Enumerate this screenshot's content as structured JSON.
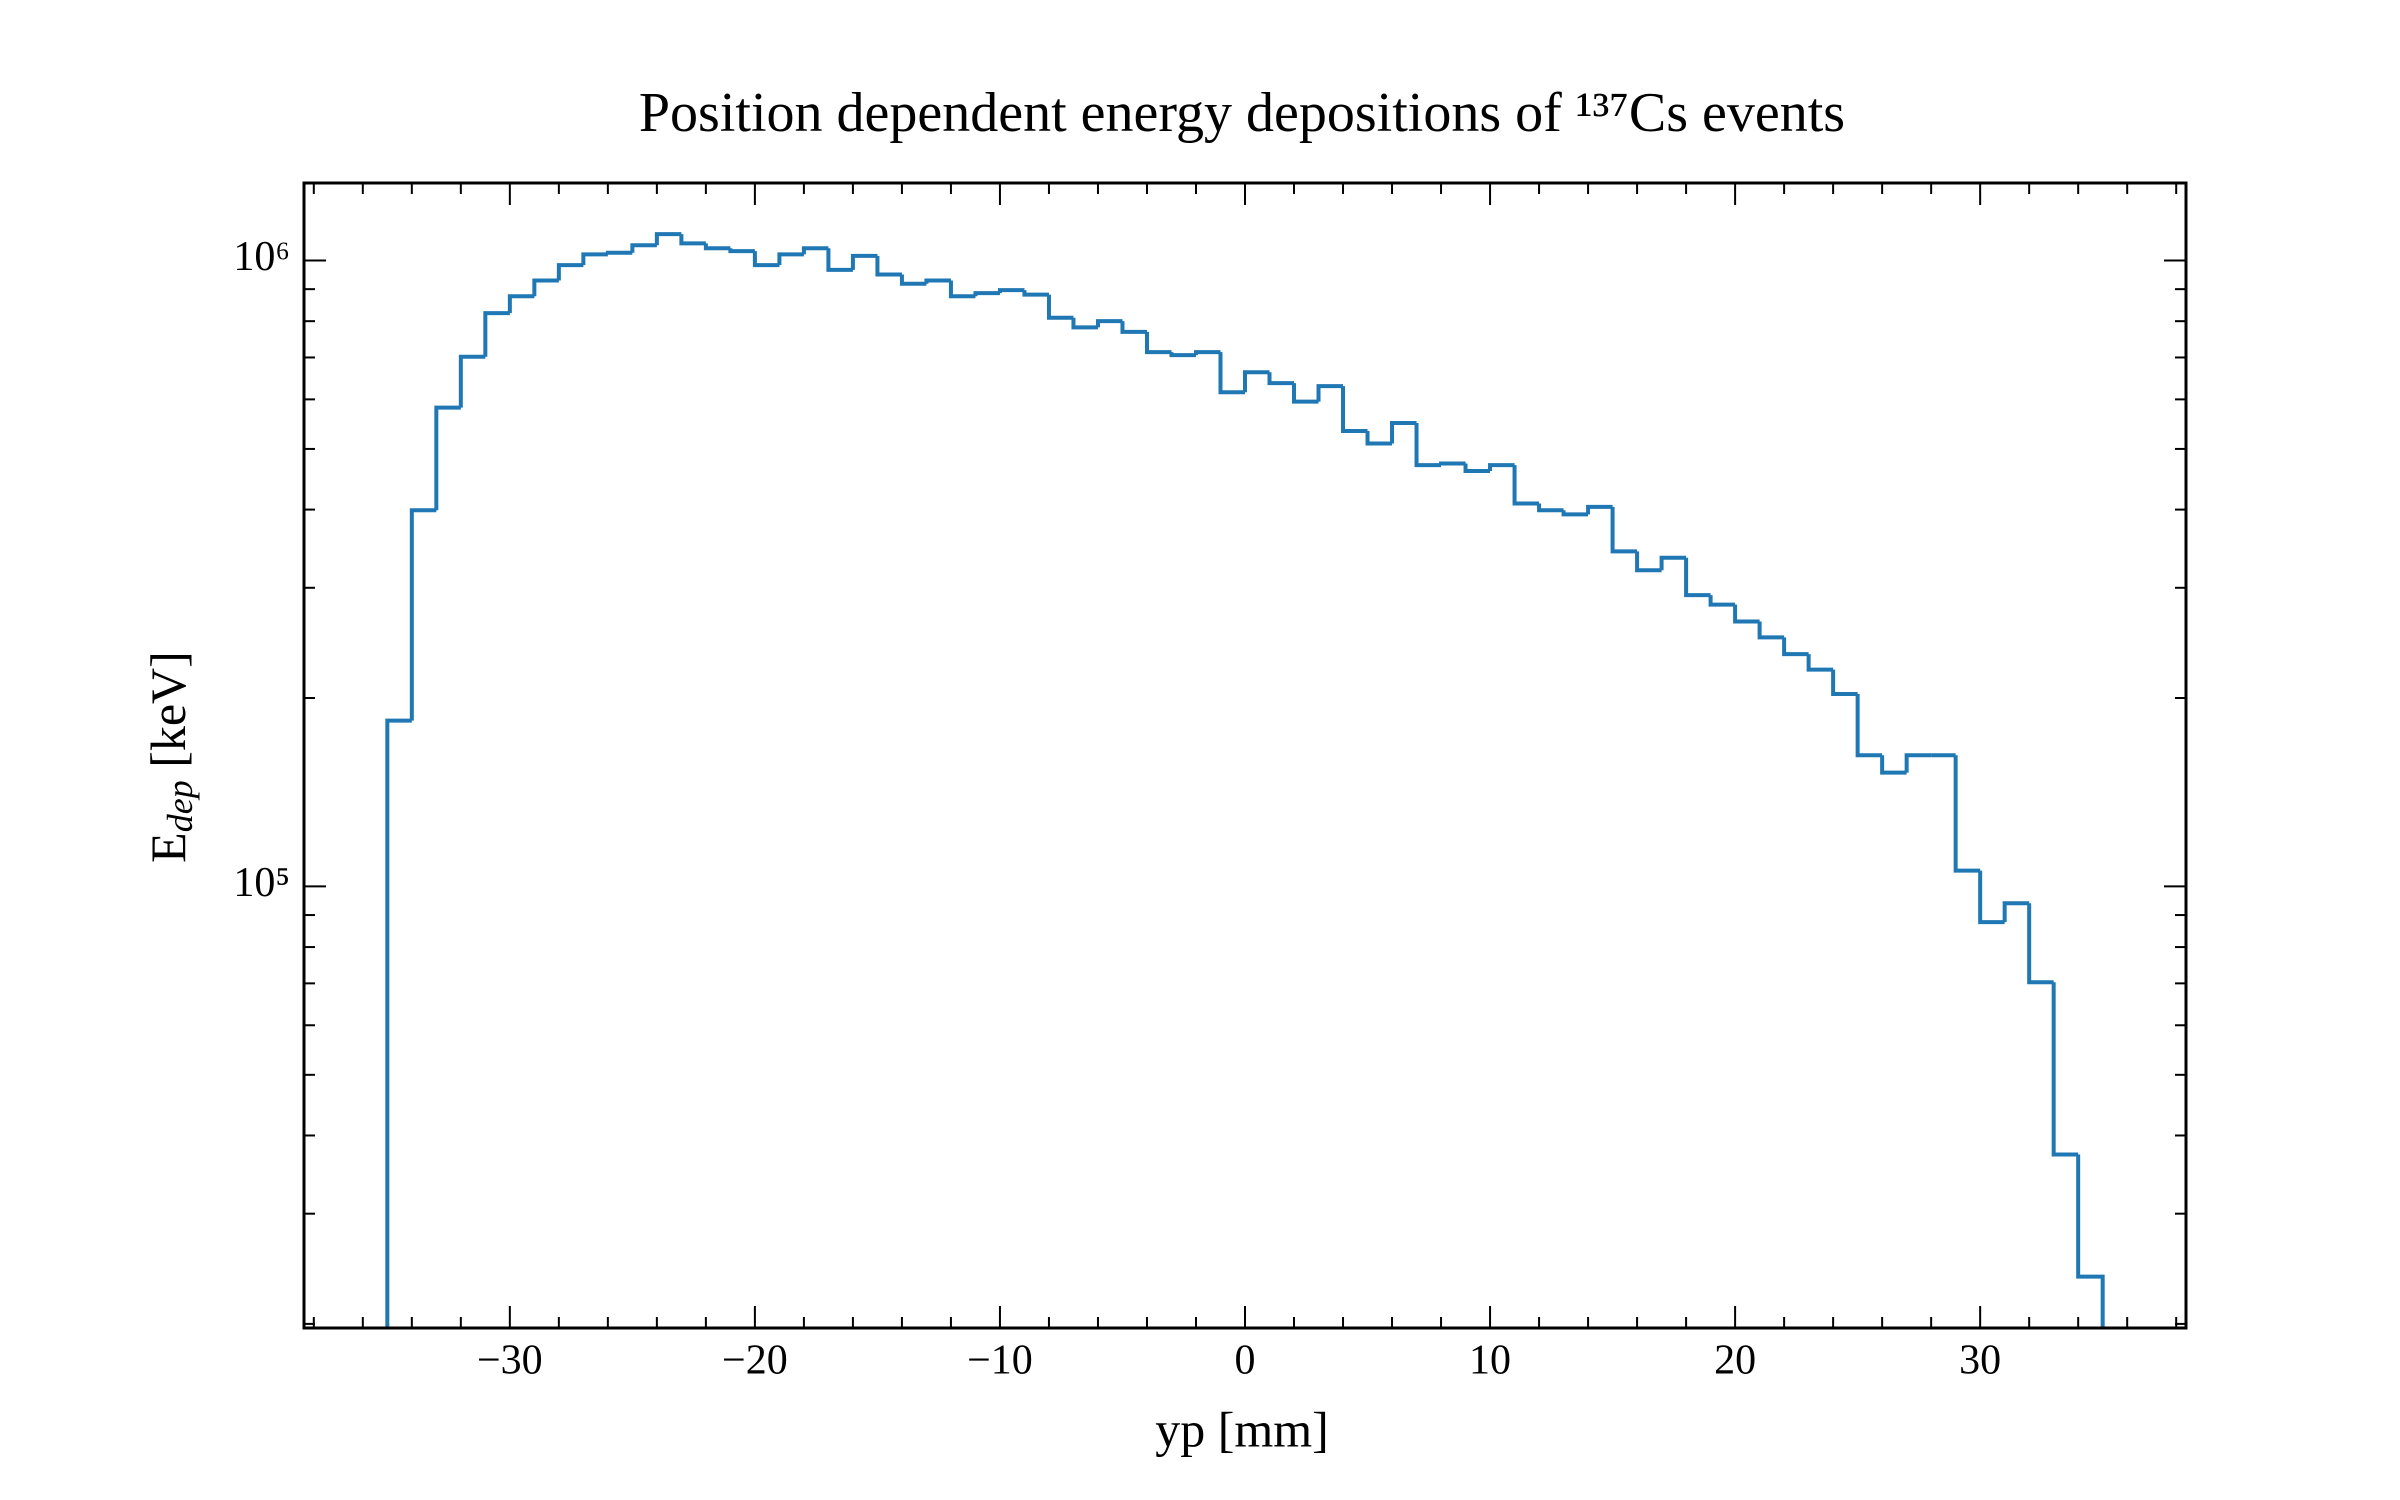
{
  "chart_data": {
    "type": "histogram",
    "title": "Position dependent energy depositions of ¹³⁷Cs events",
    "xlabel": "yp [mm]",
    "ylabel": [
      "E",
      "dep",
      " [keV]"
    ],
    "bins": [
      -35,
      -34,
      -33,
      -32,
      -31,
      -30,
      -29,
      -28,
      -27,
      -26,
      -25,
      -24,
      -23,
      -22,
      -21,
      -20,
      -19,
      -18,
      -17,
      -16,
      -15,
      -14,
      -13,
      -12,
      -11,
      -10,
      -9,
      -8,
      -7,
      -6,
      -5,
      -4,
      -3,
      -2,
      -1,
      0,
      1,
      2,
      3,
      4,
      5,
      6,
      7,
      8,
      9,
      10,
      11,
      12,
      13,
      14,
      15,
      16,
      17,
      18,
      19,
      20,
      21,
      22,
      23,
      24,
      25,
      26,
      27,
      28,
      29,
      30,
      31,
      32,
      33,
      34,
      35
    ],
    "values": [
      184000,
      399000,
      582000,
      702000,
      824000,
      877000,
      929000,
      983000,
      1023000,
      1029000,
      1058000,
      1102000,
      1065000,
      1046000,
      1035000,
      983000,
      1023000,
      1046000,
      966000,
      1017000,
      950000,
      918000,
      929000,
      877000,
      887000,
      897000,
      882000,
      810000,
      782000,
      800000,
      769000,
      714000,
      706000,
      714000,
      616000,
      663000,
      637000,
      595000,
      630000,
      534000,
      510000,
      550000,
      471000,
      474000,
      461000,
      471000,
      409000,
      399000,
      393000,
      404000,
      343000,
      320000,
      335000,
      292000,
      282000,
      265000,
      250000,
      235000,
      222000,
      203000,
      162000,
      152000,
      162000,
      162000,
      106000,
      87700,
      94000,
      70300,
      37300,
      23800
    ],
    "color": "#1f77b4",
    "log_y": true,
    "xlim": [
      -38.4,
      38.4
    ],
    "ylim": [
      19700,
      1330000
    ],
    "xticks": [
      {
        "value": -30,
        "label": "−30"
      },
      {
        "value": -20,
        "label": "−20"
      },
      {
        "value": -10,
        "label": "−10"
      },
      0,
      10,
      20,
      30
    ],
    "xminorticks": [
      -38,
      -36,
      -34,
      -32,
      -28,
      -26,
      -24,
      -22,
      -18,
      -16,
      -14,
      -12,
      -8,
      -6,
      -4,
      -2,
      2,
      4,
      6,
      8,
      12,
      14,
      16,
      18,
      22,
      24,
      26,
      28,
      32,
      34,
      36,
      38
    ],
    "yticks": [
      {
        "value": 100000,
        "label": "10⁵"
      },
      {
        "value": 1000000,
        "label": "10⁶"
      }
    ],
    "yminorticks": [
      20000,
      30000,
      40000,
      50000,
      60000,
      70000,
      80000,
      90000,
      200000,
      300000,
      400000,
      500000,
      600000,
      700000,
      800000,
      900000
    ]
  }
}
